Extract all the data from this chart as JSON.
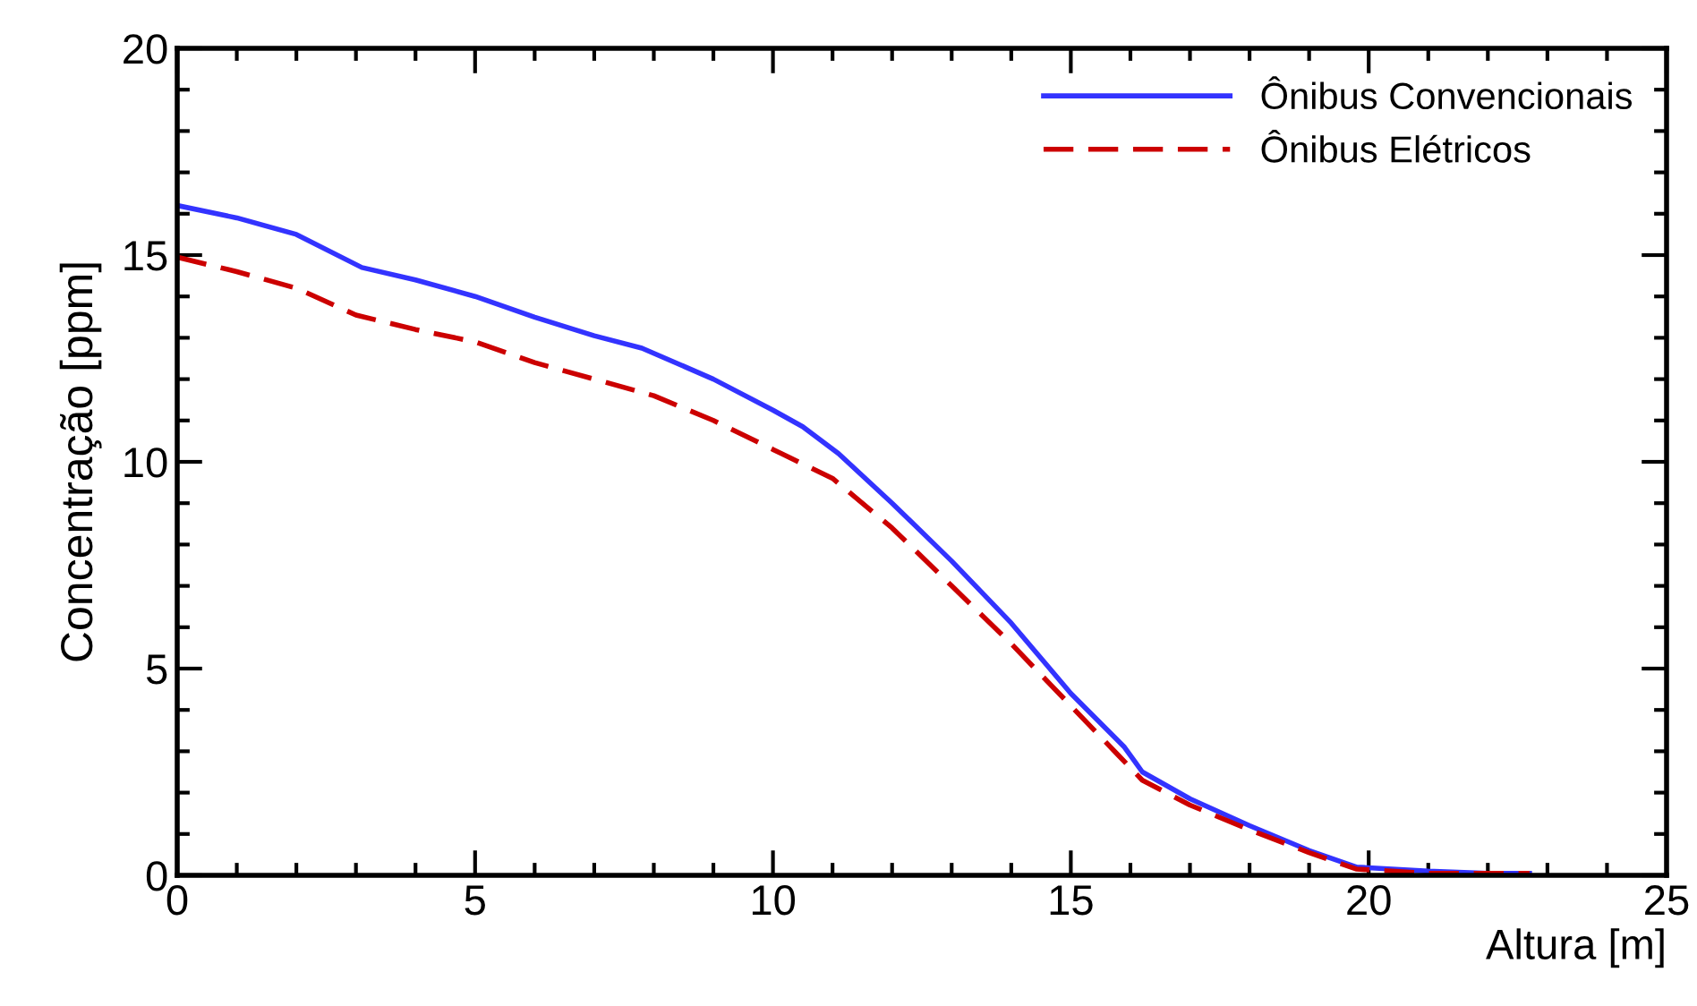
{
  "chart_data": {
    "type": "line",
    "xlabel": "Altura [m]",
    "ylabel": "Concentração [ppm]",
    "xlim": [
      0,
      25
    ],
    "ylim": [
      0,
      20
    ],
    "xticks": [
      0,
      5,
      10,
      15,
      20,
      25
    ],
    "yticks": [
      0,
      5,
      10,
      15,
      20
    ],
    "grid": false,
    "legend": "top right",
    "marker": "none",
    "series": [
      {
        "name": "Ônibus Convencionais",
        "color": "#3333ff",
        "line_style": "solid",
        "x": [
          0,
          1,
          2,
          3.1,
          4,
          5,
          6,
          7,
          7.8,
          9,
          10,
          10.5,
          11.1,
          12,
          13,
          14,
          15,
          15.9,
          16.2,
          17,
          18,
          19,
          19.8,
          21,
          22,
          22.7
        ],
        "values": [
          16.2,
          15.9,
          15.5,
          14.7,
          14.4,
          14.0,
          13.5,
          13.05,
          12.75,
          12.0,
          11.25,
          10.85,
          10.2,
          9.0,
          7.6,
          6.1,
          4.4,
          3.1,
          2.5,
          1.85,
          1.2,
          0.6,
          0.2,
          0.1,
          0.05,
          0.05
        ]
      },
      {
        "name": "Ônibus Elétricos",
        "color": "#cc0000",
        "line_style": "dashed",
        "x": [
          0,
          1,
          2,
          3,
          4,
          5,
          6,
          7,
          8,
          9,
          10,
          11,
          12,
          13,
          14,
          15,
          15.8,
          16.2,
          17,
          18,
          19,
          19.8,
          21,
          22.7
        ],
        "values": [
          14.95,
          14.6,
          14.2,
          13.55,
          13.2,
          12.9,
          12.4,
          12.0,
          11.6,
          11.0,
          10.3,
          9.6,
          8.4,
          7.0,
          5.6,
          4.1,
          2.9,
          2.3,
          1.7,
          1.1,
          0.55,
          0.15,
          0.05,
          0.05
        ]
      }
    ]
  }
}
